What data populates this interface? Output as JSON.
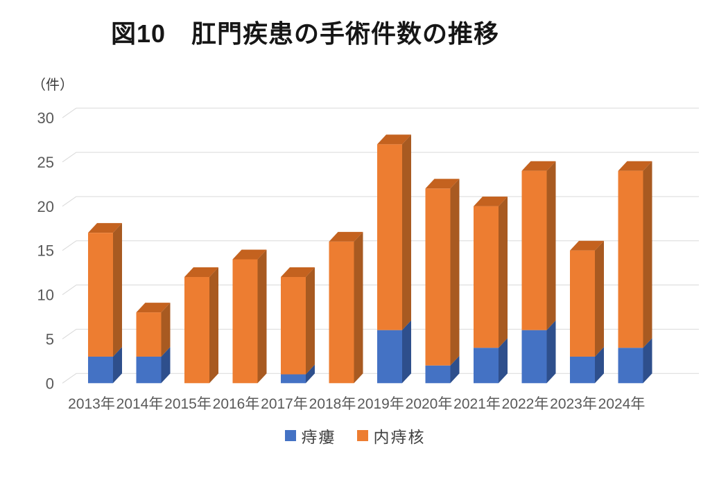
{
  "header": {
    "title": "図10　肛門疾患の手術件数の推移"
  },
  "chart_data": {
    "type": "bar",
    "subtype": "3d-stacked-column",
    "title": "図10　肛門疾患の手術件数の推移",
    "unit_label": "（件）",
    "categories": [
      "2013年",
      "2014年",
      "2015年",
      "2016年",
      "2017年",
      "2018年",
      "2019年",
      "2020年",
      "2021年",
      "2022年",
      "2023年",
      "2024年"
    ],
    "series": [
      {
        "name": "痔瘻",
        "color": "#4472C4",
        "side_color": "#2E4F8C",
        "values": [
          3,
          3,
          0,
          0,
          1,
          0,
          6,
          2,
          4,
          6,
          3,
          4
        ]
      },
      {
        "name": "内痔核",
        "color": "#ED7D31",
        "side_color": "#A85A21",
        "top_color": "#C4621F",
        "values": [
          14,
          5,
          12,
          14,
          11,
          16,
          21,
          20,
          16,
          18,
          12,
          20
        ]
      }
    ],
    "totals": [
      17,
      8,
      12,
      14,
      12,
      16,
      27,
      22,
      20,
      24,
      15,
      24
    ],
    "ylim": [
      0,
      30
    ],
    "yticks": [
      0,
      5,
      10,
      15,
      20,
      25,
      30
    ],
    "grid": true,
    "gridline_color": "#D9D9D9",
    "axis_label_color": "#595959",
    "legend_position": "bottom"
  }
}
